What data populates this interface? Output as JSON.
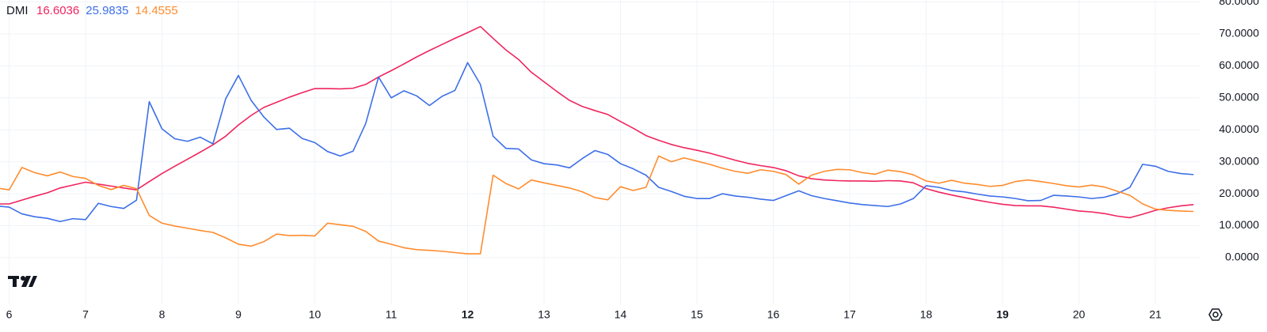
{
  "chart_data": {
    "type": "line",
    "title": "DMI",
    "x": [
      5.8333,
      6,
      6.1667,
      6.3333,
      6.5,
      6.6667,
      6.8333,
      7,
      7.1667,
      7.3333,
      7.5,
      7.6667,
      7.8333,
      8,
      8.1667,
      8.3333,
      8.5,
      8.6667,
      8.8333,
      9,
      9.1667,
      9.3333,
      9.5,
      9.6667,
      9.8333,
      10,
      10.1667,
      10.3333,
      10.5,
      10.6667,
      10.8333,
      11,
      11.1667,
      11.3333,
      11.5,
      11.6667,
      11.8333,
      12,
      12.1667,
      12.3333,
      12.5,
      12.6667,
      12.8333,
      13,
      13.1667,
      13.3333,
      13.5,
      13.6667,
      13.8333,
      14,
      14.1667,
      14.3333,
      14.5,
      14.6667,
      14.8333,
      15,
      15.1667,
      15.3333,
      15.5,
      15.6667,
      15.8333,
      16,
      16.1667,
      16.3333,
      16.5,
      16.6667,
      16.8333,
      17,
      17.1667,
      17.3333,
      17.5,
      17.6667,
      17.8333,
      18,
      18.1667,
      18.3333,
      18.5,
      18.6667,
      18.8333,
      19,
      19.1667,
      19.3333,
      19.5,
      19.6667,
      19.8333,
      20,
      20.1667,
      20.3333,
      20.5,
      20.6667,
      20.8333,
      21,
      21.1667,
      21.3333,
      21.5
    ],
    "series": [
      {
        "color": "#f0245e",
        "legend_value": 16.6036,
        "values": [
          16.8,
          16.8,
          18.0,
          19.2,
          20.3,
          21.8,
          22.7,
          23.6,
          23.0,
          22.4,
          21.8,
          21.2,
          23.8,
          26.3,
          28.6,
          30.8,
          33.0,
          35.3,
          38.0,
          41.5,
          44.5,
          47.0,
          48.6,
          50.2,
          51.6,
          52.9,
          52.9,
          52.8,
          53.0,
          54.2,
          56.5,
          58.5,
          60.6,
          62.8,
          64.8,
          66.7,
          68.6,
          70.4,
          72.3,
          68.6,
          65.0,
          62.0,
          58.0,
          55.0,
          52.0,
          49.2,
          47.3,
          46.0,
          44.8,
          42.6,
          40.5,
          38.2,
          36.7,
          35.4,
          34.4,
          33.6,
          32.7,
          31.6,
          30.5,
          29.5,
          28.8,
          28.2,
          27.2,
          25.6,
          24.7,
          24.3,
          24.1,
          24.0,
          24.0,
          23.9,
          24.1,
          24.0,
          23.4,
          21.6,
          20.5,
          19.6,
          18.8,
          18.0,
          17.3,
          16.7,
          16.3,
          16.2,
          16.2,
          15.8,
          15.2,
          14.6,
          14.3,
          13.8,
          13.0,
          12.5,
          13.6,
          14.8,
          15.6,
          16.2,
          16.6036
        ]
      },
      {
        "color": "#3d6fe8",
        "legend_value": 25.9835,
        "values": [
          16.2,
          15.8,
          13.7,
          12.8,
          12.3,
          11.3,
          12.2,
          11.9,
          17.0,
          16.0,
          15.4,
          18.0,
          48.8,
          40.3,
          37.2,
          36.4,
          37.7,
          35.6,
          49.7,
          57.0,
          49.2,
          44.0,
          40.1,
          40.5,
          37.3,
          36.0,
          33.2,
          31.8,
          33.3,
          42.0,
          56.5,
          50.0,
          52.2,
          50.6,
          47.6,
          50.5,
          52.3,
          61.0,
          54.2,
          38.0,
          34.2,
          34.0,
          30.6,
          29.4,
          29.0,
          28.1,
          31.0,
          33.5,
          32.3,
          29.4,
          27.8,
          25.8,
          22.0,
          20.7,
          19.2,
          18.5,
          18.5,
          20.0,
          19.3,
          18.9,
          18.3,
          17.9,
          19.4,
          20.9,
          19.4,
          18.5,
          17.8,
          17.1,
          16.6,
          16.3,
          16.0,
          16.8,
          18.5,
          22.5,
          22.0,
          21.0,
          20.6,
          19.9,
          19.3,
          19.0,
          18.5,
          17.8,
          17.9,
          19.5,
          19.3,
          19.0,
          18.5,
          18.9,
          20.0,
          22.0,
          29.2,
          28.6,
          27.0,
          26.3,
          25.9835
        ]
      },
      {
        "color": "#ff8c2e",
        "legend_value": 14.4555,
        "values": [
          21.8,
          21.2,
          28.2,
          26.6,
          25.6,
          26.8,
          25.4,
          24.8,
          22.6,
          21.3,
          22.6,
          21.6,
          13.2,
          10.8,
          9.9,
          9.2,
          8.5,
          7.9,
          6.2,
          4.2,
          3.6,
          5.0,
          7.4,
          6.9,
          7.0,
          6.8,
          10.8,
          10.3,
          9.8,
          8.2,
          5.2,
          4.2,
          3.1,
          2.5,
          2.3,
          2.0,
          1.6,
          1.2,
          1.2,
          25.8,
          23.2,
          21.5,
          24.3,
          23.4,
          22.6,
          21.8,
          20.6,
          18.8,
          18.1,
          22.2,
          21.0,
          22.0,
          31.8,
          30.0,
          31.2,
          30.2,
          29.2,
          28.0,
          27.0,
          26.4,
          27.5,
          27.0,
          26.0,
          23.0,
          25.8,
          27.0,
          27.6,
          27.5,
          26.6,
          26.1,
          27.4,
          26.9,
          25.9,
          24.0,
          23.3,
          24.2,
          23.3,
          22.9,
          22.3,
          22.6,
          23.8,
          24.3,
          23.8,
          23.2,
          22.5,
          22.1,
          22.7,
          22.1,
          20.8,
          19.5,
          16.8,
          15.2,
          14.8,
          14.6,
          14.4555
        ]
      }
    ],
    "xlim": [
      5.88,
      21.58
    ],
    "xticks": [
      6,
      7,
      8,
      9,
      10,
      11,
      12,
      13,
      14,
      15,
      16,
      17,
      18,
      19,
      20,
      21
    ],
    "xticks_bold": [
      12,
      19
    ],
    "ylim": [
      -14.6,
      80.6
    ],
    "yticks": [
      {
        "value": 0,
        "label": "0.0000"
      },
      {
        "value": 10,
        "label": "10.0000"
      },
      {
        "value": 20,
        "label": "20.0000"
      },
      {
        "value": 30,
        "label": "30.0000"
      },
      {
        "value": 40,
        "label": "40.0000"
      },
      {
        "value": 50,
        "label": "50.0000"
      },
      {
        "value": 60,
        "label": "60.0000"
      },
      {
        "value": 70,
        "label": "70.0000"
      },
      {
        "value": 80,
        "label": "80.0000"
      }
    ],
    "grid": true
  }
}
